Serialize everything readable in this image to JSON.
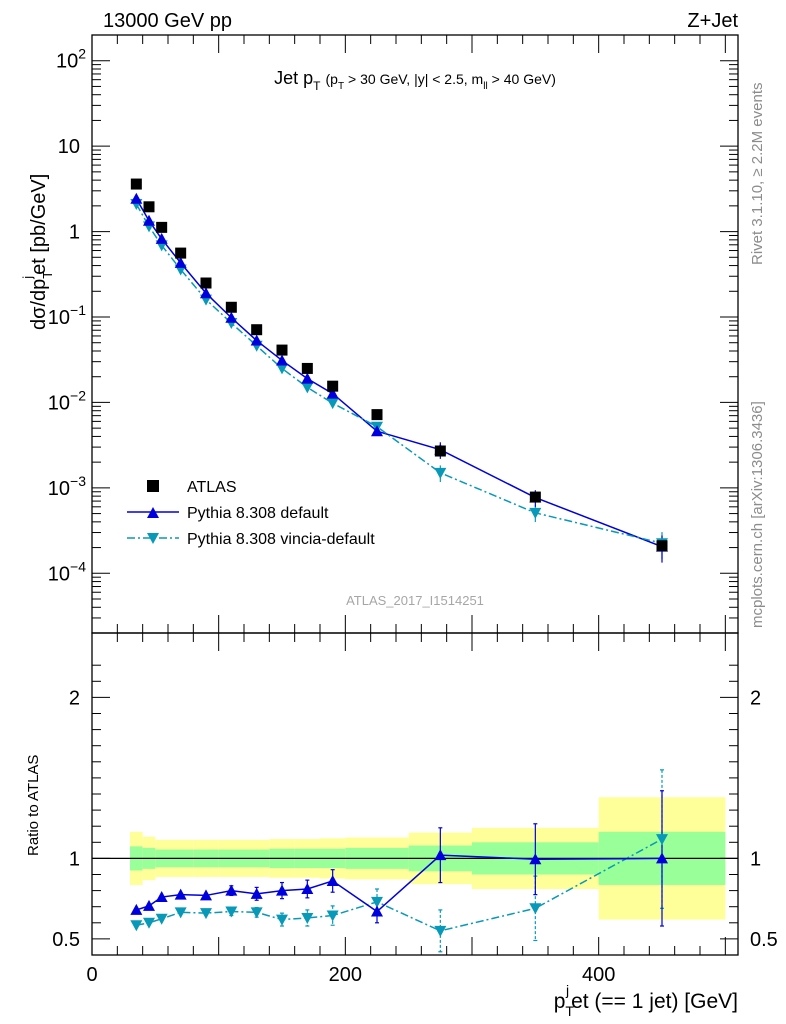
{
  "header": {
    "left": "13000 GeV pp",
    "right": "Z+Jet"
  },
  "side_labels": {
    "rivet": "Rivet 3.1.10, ≥ 2.2M events",
    "mcplots": "mcplots.cern.ch [arXiv:1306.3436]"
  },
  "analysis_id": "ATLAS_2017_I1514251",
  "colors": {
    "atlas": "#000000",
    "pythia": "#0000dd",
    "vincia": "#0899b8",
    "band_inner": "#99ff99",
    "band_outer": "#ffff99"
  },
  "chart_data": [
    {
      "type": "scatter",
      "title": "Jet p_T (p_T > 30 GeV, |y| < 2.5, m_ll > 40 GeV)",
      "title_parts": {
        "main": "Jet p",
        "main_sub": "T",
        "cond_a": "(p",
        "cond_sub": "T",
        "cond_b": "> 30 GeV, |y| < 2.5, m",
        "cond_sub2": "ll",
        "cond_c": "> 40 GeV)"
      },
      "ylabel": "dσ/dp_T^j et [pb/GeV]",
      "ylabel_parts": {
        "a": "dσ/dp",
        "sub": "T",
        "sup": "j",
        "b": "et [pb/GeV]"
      },
      "yscale": "log",
      "ylim": [
        2e-05,
        200
      ],
      "xlim": [
        0,
        510
      ],
      "yticks": [
        {
          "v": 100,
          "base": "10",
          "exp": "2"
        },
        {
          "v": 10,
          "base": "10",
          "exp": ""
        },
        {
          "v": 1,
          "base": "1",
          "exp": ""
        },
        {
          "v": 0.1,
          "base": "10",
          "exp": "−1"
        },
        {
          "v": 0.01,
          "base": "10",
          "exp": "−2"
        },
        {
          "v": 0.001,
          "base": "10",
          "exp": "−3"
        },
        {
          "v": 0.0001,
          "base": "10",
          "exp": "−4"
        }
      ],
      "legend": {
        "position": "lower-left",
        "entries": [
          "ATLAS",
          "Pythia 8.308 default",
          "Pythia 8.308 vincia-default"
        ]
      },
      "series": [
        {
          "name": "ATLAS",
          "points": [
            {
              "x": 35,
              "y": 3.6
            },
            {
              "x": 45,
              "y": 1.95
            },
            {
              "x": 55,
              "y": 1.12
            },
            {
              "x": 70,
              "y": 0.56
            },
            {
              "x": 90,
              "y": 0.25
            },
            {
              "x": 110,
              "y": 0.13
            },
            {
              "x": 130,
              "y": 0.071
            },
            {
              "x": 150,
              "y": 0.041
            },
            {
              "x": 170,
              "y": 0.025
            },
            {
              "x": 190,
              "y": 0.0155
            },
            {
              "x": 225,
              "y": 0.0072
            },
            {
              "x": 275,
              "y": 0.0027
            },
            {
              "x": 350,
              "y": 0.00078
            },
            {
              "x": 450,
              "y": 0.00021
            }
          ]
        },
        {
          "name": "Pythia 8.308 default",
          "points": [
            {
              "x": 35,
              "y": 2.42
            },
            {
              "x": 45,
              "y": 1.34
            },
            {
              "x": 55,
              "y": 0.82
            },
            {
              "x": 70,
              "y": 0.43
            },
            {
              "x": 90,
              "y": 0.19
            },
            {
              "x": 110,
              "y": 0.098
            },
            {
              "x": 130,
              "y": 0.053
            },
            {
              "x": 150,
              "y": 0.031
            },
            {
              "x": 170,
              "y": 0.019
            },
            {
              "x": 190,
              "y": 0.0127
            },
            {
              "x": 225,
              "y": 0.0046
            },
            {
              "x": 275,
              "y": 0.0028
            },
            {
              "x": 350,
              "y": 0.00077
            },
            {
              "x": 450,
              "y": 0.000205
            }
          ]
        },
        {
          "name": "Pythia 8.308 vincia-default",
          "points": [
            {
              "x": 35,
              "y": 2.1
            },
            {
              "x": 45,
              "y": 1.15
            },
            {
              "x": 55,
              "y": 0.69
            },
            {
              "x": 70,
              "y": 0.36
            },
            {
              "x": 90,
              "y": 0.16
            },
            {
              "x": 110,
              "y": 0.085
            },
            {
              "x": 130,
              "y": 0.046
            },
            {
              "x": 150,
              "y": 0.025
            },
            {
              "x": 170,
              "y": 0.015
            },
            {
              "x": 190,
              "y": 0.0098
            },
            {
              "x": 225,
              "y": 0.0052
            },
            {
              "x": 275,
              "y": 0.0015
            },
            {
              "x": 350,
              "y": 0.00051
            },
            {
              "x": 450,
              "y": 0.000225
            }
          ]
        }
      ]
    },
    {
      "type": "scatter",
      "ylabel": "Ratio to ATLAS",
      "xlabel": "p_T^j et (== 1 jet) [GeV]",
      "xlabel_parts": {
        "a": "p",
        "sub": "T",
        "sup": "j",
        "b": "et (== 1 jet) [GeV]"
      },
      "xlim": [
        0,
        510
      ],
      "ylim": [
        0.4,
        2.4
      ],
      "xticks": [
        0,
        200,
        400
      ],
      "yticks": [
        0.5,
        1,
        2
      ],
      "reference_line": 1,
      "bands": [
        {
          "x0": 30,
          "x1": 40,
          "inner": 0.075,
          "outer": 0.165
        },
        {
          "x0": 40,
          "x1": 50,
          "inner": 0.065,
          "outer": 0.135
        },
        {
          "x0": 50,
          "x1": 60,
          "inner": 0.055,
          "outer": 0.115
        },
        {
          "x0": 60,
          "x1": 80,
          "inner": 0.055,
          "outer": 0.115
        },
        {
          "x0": 80,
          "x1": 100,
          "inner": 0.055,
          "outer": 0.115
        },
        {
          "x0": 100,
          "x1": 120,
          "inner": 0.055,
          "outer": 0.115
        },
        {
          "x0": 120,
          "x1": 140,
          "inner": 0.055,
          "outer": 0.115
        },
        {
          "x0": 140,
          "x1": 160,
          "inner": 0.06,
          "outer": 0.12
        },
        {
          "x0": 160,
          "x1": 180,
          "inner": 0.06,
          "outer": 0.12
        },
        {
          "x0": 180,
          "x1": 200,
          "inner": 0.06,
          "outer": 0.125
        },
        {
          "x0": 200,
          "x1": 250,
          "inner": 0.065,
          "outer": 0.13
        },
        {
          "x0": 250,
          "x1": 300,
          "inner": 0.08,
          "outer": 0.16
        },
        {
          "x0": 300,
          "x1": 400,
          "inner": 0.1,
          "outer": 0.19
        },
        {
          "x0": 400,
          "x1": 500,
          "inner": 0.165,
          "outer": 0.38
        }
      ],
      "series": [
        {
          "name": "Pythia 8.308 default",
          "points": [
            {
              "x": 35,
              "y": 0.68,
              "err": 0.01
            },
            {
              "x": 45,
              "y": 0.705,
              "err": 0.01
            },
            {
              "x": 55,
              "y": 0.76,
              "err": 0.015
            },
            {
              "x": 70,
              "y": 0.775,
              "err": 0.015
            },
            {
              "x": 90,
              "y": 0.77,
              "err": 0.02
            },
            {
              "x": 110,
              "y": 0.8,
              "err": 0.03
            },
            {
              "x": 130,
              "y": 0.78,
              "err": 0.04
            },
            {
              "x": 150,
              "y": 0.8,
              "err": 0.05
            },
            {
              "x": 170,
              "y": 0.81,
              "err": 0.055
            },
            {
              "x": 190,
              "y": 0.86,
              "err": 0.07
            },
            {
              "x": 225,
              "y": 0.67,
              "err": 0.07
            },
            {
              "x": 275,
              "y": 1.02,
              "err": 0.17
            },
            {
              "x": 350,
              "y": 0.995,
              "err": 0.22
            },
            {
              "x": 450,
              "y": 1.0,
              "err": 0.42
            }
          ]
        },
        {
          "name": "Pythia 8.308 vincia-default",
          "points": [
            {
              "x": 35,
              "y": 0.585,
              "err": 0.01
            },
            {
              "x": 45,
              "y": 0.6,
              "err": 0.01
            },
            {
              "x": 55,
              "y": 0.625,
              "err": 0.015
            },
            {
              "x": 70,
              "y": 0.665,
              "err": 0.015
            },
            {
              "x": 90,
              "y": 0.66,
              "err": 0.02
            },
            {
              "x": 110,
              "y": 0.67,
              "err": 0.025
            },
            {
              "x": 130,
              "y": 0.665,
              "err": 0.03
            },
            {
              "x": 150,
              "y": 0.62,
              "err": 0.04
            },
            {
              "x": 170,
              "y": 0.63,
              "err": 0.05
            },
            {
              "x": 190,
              "y": 0.645,
              "err": 0.06
            },
            {
              "x": 225,
              "y": 0.73,
              "err": 0.08
            },
            {
              "x": 275,
              "y": 0.55,
              "err": 0.13
            },
            {
              "x": 350,
              "y": 0.69,
              "err": 0.2
            },
            {
              "x": 450,
              "y": 1.12,
              "err": 0.43
            }
          ]
        }
      ]
    }
  ]
}
